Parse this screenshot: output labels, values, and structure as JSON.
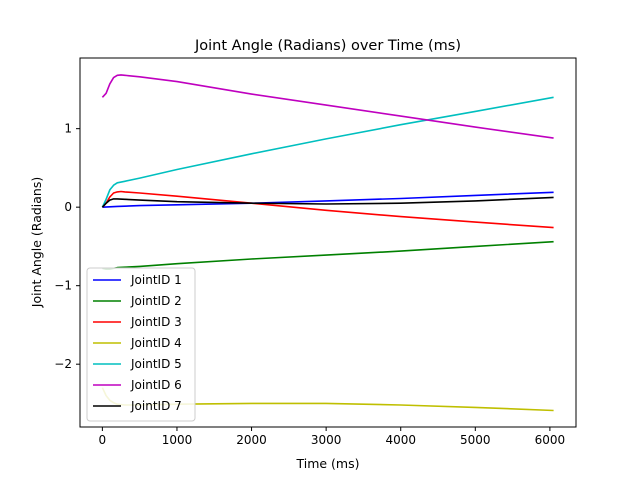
{
  "chart_data": {
    "type": "line",
    "title": "Joint Angle (Radians) over Time (ms)",
    "xlabel": "Time (ms)",
    "ylabel": "Joint Angle (Radians)",
    "xlim": [
      -300,
      6350
    ],
    "ylim": [
      -2.8,
      1.9
    ],
    "xticks": [
      0,
      1000,
      2000,
      3000,
      4000,
      5000,
      6000
    ],
    "yticks": [
      -2,
      -1,
      0,
      1
    ],
    "ytick_labels": [
      "−2",
      "−1",
      "0",
      "1"
    ],
    "grid": false,
    "legend_position": "lower-left",
    "series": [
      {
        "name": "JointID 1",
        "color": "#0000ff",
        "x": [
          0,
          100,
          200,
          500,
          1000,
          2000,
          3000,
          4000,
          5000,
          6050
        ],
        "y": [
          0.0,
          0.005,
          0.01,
          0.02,
          0.03,
          0.05,
          0.08,
          0.11,
          0.15,
          0.19
        ]
      },
      {
        "name": "JointID 2",
        "color": "#008000",
        "x": [
          0,
          50,
          100,
          150,
          200,
          300,
          500,
          1000,
          2000,
          3000,
          4000,
          5000,
          6050
        ],
        "y": [
          -0.78,
          -0.79,
          -0.79,
          -0.78,
          -0.77,
          -0.765,
          -0.755,
          -0.72,
          -0.66,
          -0.61,
          -0.56,
          -0.5,
          -0.44
        ]
      },
      {
        "name": "JointID 3",
        "color": "#ff0000",
        "x": [
          0,
          50,
          100,
          150,
          200,
          250,
          300,
          500,
          1000,
          2000,
          3000,
          4000,
          5000,
          6050
        ],
        "y": [
          0.0,
          0.05,
          0.13,
          0.18,
          0.195,
          0.2,
          0.195,
          0.18,
          0.14,
          0.05,
          -0.04,
          -0.12,
          -0.19,
          -0.26
        ]
      },
      {
        "name": "JointID 4",
        "color": "#bfbf00",
        "x": [
          0,
          50,
          100,
          150,
          200,
          300,
          500,
          1000,
          2000,
          3000,
          4000,
          5000,
          6050
        ],
        "y": [
          -2.3,
          -2.4,
          -2.46,
          -2.49,
          -2.51,
          -2.52,
          -2.52,
          -2.51,
          -2.5,
          -2.5,
          -2.52,
          -2.55,
          -2.59
        ]
      },
      {
        "name": "JointID 5",
        "color": "#00bfbf",
        "x": [
          0,
          50,
          100,
          150,
          200,
          300,
          500,
          1000,
          2000,
          3000,
          4000,
          5000,
          6050
        ],
        "y": [
          0.0,
          0.1,
          0.22,
          0.28,
          0.31,
          0.33,
          0.37,
          0.48,
          0.68,
          0.87,
          1.05,
          1.22,
          1.4
        ]
      },
      {
        "name": "JointID 6",
        "color": "#bf00bf",
        "x": [
          0,
          50,
          100,
          150,
          200,
          250,
          300,
          500,
          1000,
          2000,
          3000,
          4000,
          5000,
          6050
        ],
        "y": [
          1.4,
          1.45,
          1.57,
          1.65,
          1.68,
          1.685,
          1.68,
          1.66,
          1.6,
          1.44,
          1.3,
          1.16,
          1.02,
          0.88
        ]
      },
      {
        "name": "JointID 7",
        "color": "#000000",
        "x": [
          0,
          50,
          100,
          150,
          200,
          300,
          500,
          1000,
          2000,
          3000,
          4000,
          5000,
          6050
        ],
        "y": [
          0.0,
          0.05,
          0.09,
          0.105,
          0.105,
          0.1,
          0.09,
          0.07,
          0.05,
          0.04,
          0.05,
          0.08,
          0.125
        ]
      }
    ]
  }
}
